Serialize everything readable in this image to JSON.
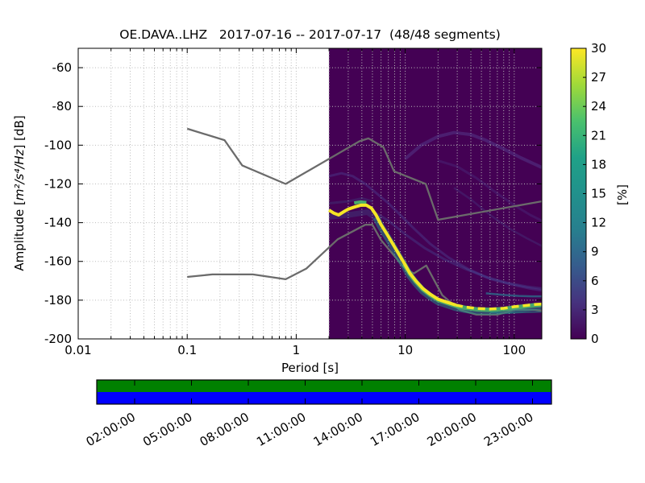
{
  "figure": {
    "title": "OE.DAVA..LHZ   2017-07-16 -- 2017-07-17  (48/48 segments)",
    "station_id": "OE.DAVA..LHZ",
    "date_start": "2017-07-16",
    "date_end": "2017-07-17",
    "segments": "48/48 segments"
  },
  "chart_data": {
    "type": "heatmap",
    "title": "OE.DAVA..LHZ   2017-07-16 -- 2017-07-17  (48/48 segments)",
    "xlabel": "Period [s]",
    "ylabel_prefix": "Amplitude [",
    "ylabel_math": "m²/s⁴/Hz",
    "ylabel_suffix": "] [dB]",
    "x_scale": "log",
    "xlim": [
      0.01,
      179
    ],
    "ylim": [
      -200,
      -50
    ],
    "grid": true,
    "x_ticks": {
      "values": [
        0.01,
        0.1,
        1,
        10,
        100
      ],
      "labels": [
        "0.01",
        "0.1",
        "1",
        "10",
        "100"
      ]
    },
    "y_ticks": {
      "values": [
        -60,
        -80,
        -100,
        -120,
        -140,
        -160,
        -180,
        -200
      ],
      "labels": [
        "-60",
        "-80",
        "-100",
        "-120",
        "-140",
        "-160",
        "-180",
        "-200"
      ]
    },
    "histogram_period_range": [
      2.0,
      179
    ],
    "colorbar": {
      "label": "[%]",
      "ticks": [
        0,
        3,
        6,
        9,
        12,
        15,
        18,
        21,
        24,
        27,
        30
      ],
      "range": [
        0,
        30
      ],
      "stops": [
        {
          "offset": 0.0,
          "color": "#440154"
        },
        {
          "offset": 0.125,
          "color": "#46327e"
        },
        {
          "offset": 0.25,
          "color": "#365c8d"
        },
        {
          "offset": 0.375,
          "color": "#277f8e"
        },
        {
          "offset": 0.5,
          "color": "#21918c"
        },
        {
          "offset": 0.625,
          "color": "#1fa187"
        },
        {
          "offset": 0.75,
          "color": "#4ac16d"
        },
        {
          "offset": 0.875,
          "color": "#a0da39"
        },
        {
          "offset": 1.0,
          "color": "#fde725"
        }
      ]
    },
    "noise_models": {
      "nhnm": [
        [
          0.1,
          -91.5
        ],
        [
          0.22,
          -97.4
        ],
        [
          0.32,
          -110.5
        ],
        [
          0.8,
          -120.0
        ],
        [
          3.8,
          -98.0
        ],
        [
          4.6,
          -96.5
        ],
        [
          6.3,
          -101.0
        ],
        [
          7.9,
          -113.5
        ],
        [
          15.4,
          -120.0
        ],
        [
          20.0,
          -138.5
        ],
        [
          179,
          -129.0
        ]
      ],
      "nlnm": [
        [
          0.1,
          -168.0
        ],
        [
          0.17,
          -166.7
        ],
        [
          0.4,
          -166.7
        ],
        [
          0.8,
          -169.2
        ],
        [
          1.24,
          -163.7
        ],
        [
          2.4,
          -148.6
        ],
        [
          4.3,
          -141.1
        ],
        [
          5.0,
          -141.1
        ],
        [
          6.0,
          -149.0
        ],
        [
          10.0,
          -163.8
        ],
        [
          12.0,
          -166.2
        ],
        [
          15.6,
          -162.1
        ],
        [
          21.9,
          -177.5
        ],
        [
          31.6,
          -185.0
        ],
        [
          45.0,
          -187.5
        ],
        [
          70.0,
          -187.5
        ],
        [
          101.0,
          -185.0
        ],
        [
          154.0,
          -185.0
        ],
        [
          179,
          -185.4
        ]
      ]
    },
    "psd_mode": [
      [
        2.0,
        -133.5
      ],
      [
        2.2,
        -135.0
      ],
      [
        2.45,
        -136.0
      ],
      [
        2.7,
        -134.5
      ],
      [
        3.0,
        -133.0
      ],
      [
        3.4,
        -132.0
      ],
      [
        3.9,
        -131.0
      ],
      [
        4.4,
        -131.0
      ],
      [
        4.9,
        -132.5
      ],
      [
        5.4,
        -136.0
      ],
      [
        6.0,
        -141.0
      ],
      [
        6.8,
        -146.0
      ],
      [
        7.7,
        -151.0
      ],
      [
        8.7,
        -156.0
      ],
      [
        9.8,
        -161.0
      ],
      [
        11.0,
        -166.0
      ],
      [
        12.5,
        -170.0
      ],
      [
        14.5,
        -174.0
      ],
      [
        17.0,
        -177.0
      ],
      [
        20.0,
        -179.5
      ],
      [
        24.0,
        -181.0
      ],
      [
        29.0,
        -182.5
      ],
      [
        35.0,
        -183.5
      ],
      [
        45.0,
        -184.3
      ],
      [
        60.0,
        -184.6
      ],
      [
        80.0,
        -184.2
      ],
      [
        100.0,
        -183.4
      ],
      [
        125.0,
        -182.8
      ],
      [
        155.0,
        -182.2
      ],
      [
        179.0,
        -182.0
      ]
    ],
    "spread_traces": [
      {
        "points": [
          [
            10,
            -107
          ],
          [
            14,
            -100
          ],
          [
            20,
            -95.5
          ],
          [
            28,
            -93.5
          ],
          [
            40,
            -94.5
          ],
          [
            55,
            -97.5
          ],
          [
            80,
            -102
          ],
          [
            115,
            -106.5
          ],
          [
            150,
            -109.5
          ],
          [
            179,
            -111.5
          ]
        ],
        "color": "#5b4a9b",
        "width": 4,
        "opacity": 0.4
      },
      {
        "points": [
          [
            2,
            -116
          ],
          [
            2.6,
            -114.5
          ],
          [
            3.3,
            -116
          ],
          [
            4.3,
            -120
          ],
          [
            5.5,
            -125
          ],
          [
            7,
            -130
          ],
          [
            9,
            -136
          ],
          [
            12,
            -143
          ],
          [
            17,
            -151
          ],
          [
            25,
            -158
          ],
          [
            38,
            -164
          ],
          [
            60,
            -169
          ],
          [
            95,
            -172
          ],
          [
            140,
            -174
          ],
          [
            179,
            -175
          ]
        ],
        "color": "#4b3f8f",
        "width": 3,
        "opacity": 0.45
      },
      {
        "points": [
          [
            5,
            -134
          ],
          [
            7,
            -139
          ],
          [
            10,
            -146
          ],
          [
            15,
            -153
          ],
          [
            23,
            -159
          ],
          [
            36,
            -164
          ],
          [
            55,
            -168
          ],
          [
            85,
            -171
          ],
          [
            130,
            -173
          ],
          [
            179,
            -174
          ]
        ],
        "color": "#44509b",
        "width": 3,
        "opacity": 0.35
      },
      {
        "points": [
          [
            20,
            -108
          ],
          [
            30,
            -111
          ],
          [
            45,
            -117
          ],
          [
            70,
            -125
          ],
          [
            100,
            -131
          ],
          [
            140,
            -136
          ],
          [
            179,
            -139
          ]
        ],
        "color": "#4b3f8f",
        "width": 3,
        "opacity": 0.3
      },
      {
        "points": [
          [
            28,
            -122
          ],
          [
            40,
            -128
          ],
          [
            60,
            -136
          ],
          [
            90,
            -143
          ],
          [
            130,
            -148
          ],
          [
            179,
            -152
          ]
        ],
        "color": "#454a90",
        "width": 2.5,
        "opacity": 0.3
      },
      {
        "points": [
          [
            55,
            -176.5
          ],
          [
            80,
            -177.3
          ],
          [
            110,
            -177.8
          ],
          [
            145,
            -178
          ],
          [
            179,
            -178
          ]
        ],
        "color": "#2a788e",
        "width": 2.5,
        "opacity": 0.7
      },
      {
        "points": [
          [
            60,
            -186.3
          ],
          [
            90,
            -186.6
          ],
          [
            130,
            -186.2
          ],
          [
            179,
            -186
          ]
        ],
        "color": "#21918c",
        "width": 2,
        "opacity": 0.6
      },
      {
        "points": [
          [
            2,
            -137
          ],
          [
            3,
            -136
          ],
          [
            4.5,
            -134.5
          ],
          [
            5.5,
            -138
          ]
        ],
        "color": "#3b528b",
        "width": 7,
        "opacity": 0.35
      },
      {
        "points": [
          [
            2,
            -130
          ],
          [
            3,
            -129
          ],
          [
            4,
            -127.5
          ],
          [
            5,
            -129
          ]
        ],
        "color": "#3b528b",
        "width": 3,
        "opacity": 0.3
      },
      {
        "points": [
          [
            3.4,
            -129.8
          ],
          [
            3.9,
            -129.3
          ],
          [
            4.4,
            -129.6
          ]
        ],
        "color": "#4ac16d",
        "width": 4,
        "opacity": 0.9
      }
    ],
    "timeline": {
      "labels": [
        "02:00:00",
        "05:00:00",
        "08:00:00",
        "11:00:00",
        "14:00:00",
        "17:00:00",
        "20:00:00",
        "23:00:00"
      ],
      "label_hours": [
        2,
        5,
        8,
        11,
        14,
        17,
        20,
        23
      ],
      "range_hours": [
        0,
        24
      ],
      "top_color": "#008000",
      "bottom_color": "#0000ff"
    }
  },
  "colors": {
    "histogram_background": "#440154",
    "noise_model_line": "#6b6b6b",
    "ridge_yellow": "#f4e626",
    "ridge_green": "#50c46a",
    "ridge_teal": "#21918c",
    "grid_dots": "#bbbbbb",
    "axes_edge": "#000000"
  }
}
